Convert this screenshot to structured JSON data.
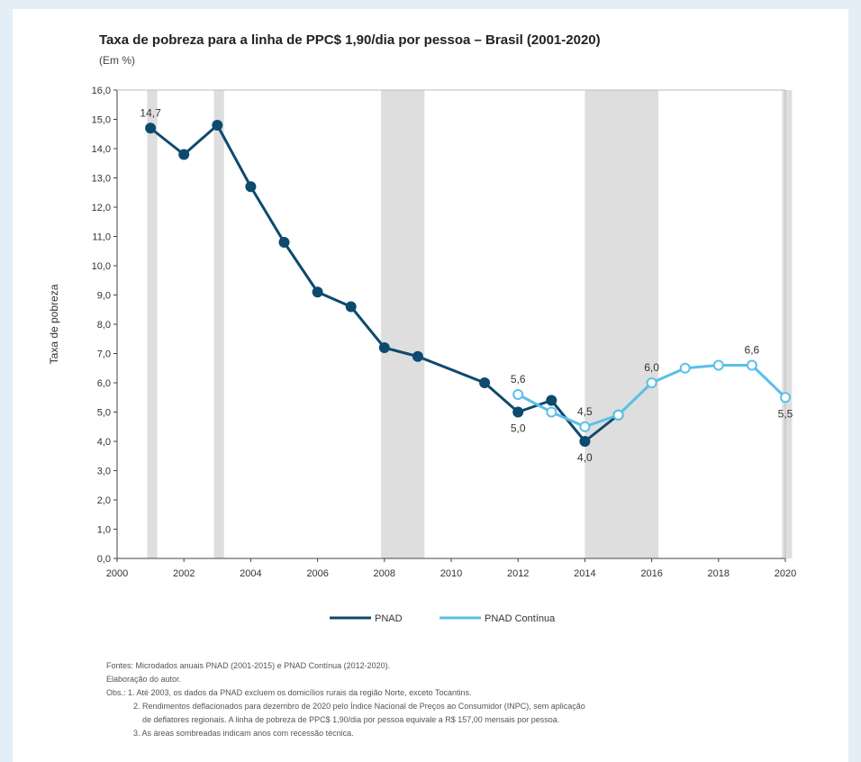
{
  "title": "Taxa de pobreza para a linha de PPC$ 1,90/dia por pessoa – Brasil (2001-2020)",
  "subtitle": "(Em %)",
  "colors": {
    "pnad": "#0d4a6e",
    "pnad_continua": "#5bbfe8",
    "recession": "#dedede"
  },
  "chart_data": {
    "type": "line",
    "title": "Taxa de pobreza para a linha de PPC$ 1,90/dia por pessoa – Brasil (2001-2020)",
    "subtitle": "(Em %)",
    "xlabel": "",
    "ylabel": "Taxa de pobreza",
    "xlim": [
      2000,
      2020
    ],
    "ylim": [
      0,
      16
    ],
    "x_ticks": [
      "2000",
      "2002",
      "2004",
      "2006",
      "2008",
      "2010",
      "2012",
      "2014",
      "2016",
      "2018",
      "2020"
    ],
    "y_ticks": [
      "0,0",
      "1,0",
      "2,0",
      "3,0",
      "4,0",
      "5,0",
      "6,0",
      "7,0",
      "8,0",
      "9,0",
      "10,0",
      "11,0",
      "12,0",
      "13,0",
      "14,0",
      "15,0",
      "16,0"
    ],
    "grid": false,
    "legend_position": "bottom-center",
    "series": [
      {
        "name": "PNAD",
        "x": [
          2001,
          2002,
          2003,
          2004,
          2005,
          2006,
          2007,
          2008,
          2009,
          2011,
          2012,
          2013,
          2014,
          2015
        ],
        "values": [
          14.7,
          13.8,
          14.8,
          12.7,
          10.8,
          9.1,
          8.6,
          7.2,
          6.9,
          6.0,
          5.0,
          5.4,
          4.0,
          4.9
        ]
      },
      {
        "name": "PNAD Contínua",
        "x": [
          2012,
          2013,
          2014,
          2015,
          2016,
          2017,
          2018,
          2019,
          2020
        ],
        "values": [
          5.6,
          5.0,
          4.5,
          4.9,
          6.0,
          6.5,
          6.6,
          6.6,
          5.5
        ]
      }
    ],
    "data_labels": [
      {
        "text": "14,7",
        "x": 2001,
        "y": 14.7,
        "pos": "above"
      },
      {
        "text": "5,6",
        "x": 2012,
        "y": 5.6,
        "pos": "above"
      },
      {
        "text": "5,0",
        "x": 2012,
        "y": 5.0,
        "pos": "below"
      },
      {
        "text": "4,5",
        "x": 2014,
        "y": 4.5,
        "pos": "above"
      },
      {
        "text": "4,0",
        "x": 2014,
        "y": 4.0,
        "pos": "below"
      },
      {
        "text": "6,0",
        "x": 2016,
        "y": 6.0,
        "pos": "above"
      },
      {
        "text": "6,6",
        "x": 2019,
        "y": 6.6,
        "pos": "above"
      },
      {
        "text": "5,5",
        "x": 2020,
        "y": 5.5,
        "pos": "below"
      }
    ],
    "recession_bands": [
      [
        2000.9,
        2001.2
      ],
      [
        2002.9,
        2003.2
      ],
      [
        2007.9,
        2009.2
      ],
      [
        2014.0,
        2016.2
      ],
      [
        2019.9,
        2020.2
      ]
    ]
  },
  "notes": {
    "fontes": "Fontes: Microdados anuais PNAD (2001-2015) e PNAD Contínua (2012-2020).",
    "elaboracao": "Elaboração do autor.",
    "obs1": "Obs.: 1. Até 2003, os dados da PNAD excluem os domicílios rurais da região Norte, exceto Tocantins.",
    "obs2a": "2. Rendimentos deflacionados para dezembro de 2020 pelo Índice Nacional de Preços ao Consumidor (INPC), sem aplicação",
    "obs2b": "de deflatores regionais. A linha de pobreza de PPC$ 1,90/dia por pessoa equivale a R$ 157,00 mensais por pessoa.",
    "obs3": "3. As áreas sombreadas indicam anos com recessão técnica."
  }
}
